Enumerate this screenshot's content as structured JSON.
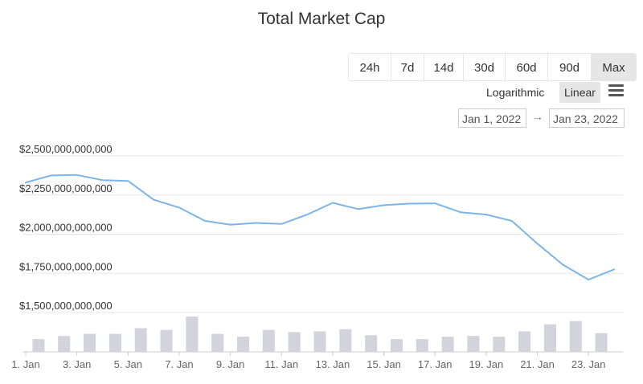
{
  "chart_data": {
    "type": "line",
    "title": "Total Market Cap",
    "x": [
      "1. Jan",
      "2. Jan",
      "3. Jan",
      "4. Jan",
      "5. Jan",
      "6. Jan",
      "7. Jan",
      "8. Jan",
      "9. Jan",
      "10. Jan",
      "11. Jan",
      "12. Jan",
      "13. Jan",
      "14. Jan",
      "15. Jan",
      "16. Jan",
      "17. Jan",
      "18. Jan",
      "19. Jan",
      "20. Jan",
      "21. Jan",
      "22. Jan",
      "23. Jan",
      "24. Jan"
    ],
    "x_tick_labels": [
      "1. Jan",
      "3. Jan",
      "5. Jan",
      "7. Jan",
      "9. Jan",
      "11. Jan",
      "13. Jan",
      "15. Jan",
      "17. Jan",
      "19. Jan",
      "21. Jan",
      "23. Jan"
    ],
    "y_tick_labels": [
      "$2,500,000,000,000",
      "$2,250,000,000,000",
      "$2,000,000,000,000",
      "$1,750,000,000,000",
      "$1,500,000,000,000"
    ],
    "y_ticks": [
      2500000000000,
      2250000000000,
      2000000000000,
      1750000000000,
      1500000000000
    ],
    "ylim": [
      1500000000000,
      2500000000000
    ],
    "series": [
      {
        "values": [
          2330000000000,
          2375000000000,
          2378000000000,
          2345000000000,
          2340000000000,
          2220000000000,
          2170000000000,
          2085000000000,
          2060000000000,
          2072000000000,
          2065000000000,
          2125000000000,
          2200000000000,
          2160000000000,
          2185000000000,
          2195000000000,
          2197000000000,
          2140000000000,
          2125000000000,
          2085000000000,
          1940000000000,
          1805000000000,
          1710000000000,
          1775000000000
        ],
        "color": "#7cb5ec"
      },
      {
        "type": "bar",
        "values_relative": [
          0.36,
          0.45,
          0.51,
          0.51,
          0.67,
          0.62,
          1.0,
          0.51,
          0.43,
          0.62,
          0.56,
          0.58,
          0.64,
          0.47,
          0.36,
          0.36,
          0.43,
          0.45,
          0.43,
          0.58,
          0.78,
          0.87,
          0.53
        ],
        "color": "#d2d4dc"
      }
    ],
    "grid": true,
    "legend": "none"
  },
  "controls": {
    "ranges": [
      "24h",
      "7d",
      "14d",
      "30d",
      "60d",
      "90d",
      "Max"
    ],
    "active_range": "Max",
    "scale_log_label": "Logarithmic",
    "scale_linear_label": "Linear",
    "date_from": "Jan 1, 2022",
    "date_arrow": "→",
    "date_to": "Jan 23, 2022"
  },
  "icons": {
    "menu": "hamburger-menu-icon"
  }
}
